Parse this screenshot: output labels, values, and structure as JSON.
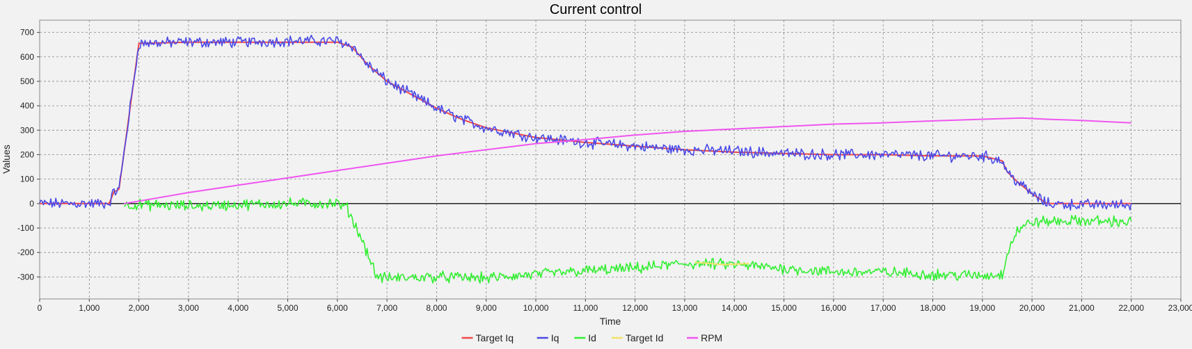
{
  "chart_data": {
    "type": "line",
    "title": "Current control",
    "xlabel": "Time",
    "ylabel": "Values",
    "xlim": [
      0,
      23000
    ],
    "ylim": [
      -390,
      750
    ],
    "x_ticks": [
      0,
      1000,
      2000,
      3000,
      4000,
      5000,
      6000,
      7000,
      8000,
      9000,
      10000,
      11000,
      12000,
      13000,
      14000,
      15000,
      16000,
      17000,
      18000,
      19000,
      20000,
      21000,
      22000,
      23000
    ],
    "x_tick_labels": [
      "0",
      "1,000",
      "2,000",
      "3,000",
      "4,000",
      "5,000",
      "6,000",
      "7,000",
      "8,000",
      "9,000",
      "10,000",
      "11,000",
      "12,000",
      "13,000",
      "14,000",
      "15,000",
      "16,000",
      "17,000",
      "18,000",
      "19,000",
      "20,000",
      "21,000",
      "22,000",
      "23,000"
    ],
    "y_ticks": [
      -300,
      -200,
      -100,
      0,
      100,
      200,
      300,
      400,
      500,
      600,
      700
    ],
    "y_tick_labels": [
      "-300",
      "-200",
      "-100",
      "0",
      "100",
      "200",
      "300",
      "400",
      "500",
      "600",
      "700"
    ],
    "grid": true,
    "legend_position": "bottom-center",
    "series": [
      {
        "name": "Target Iq",
        "color": "#f04848",
        "x": [
          0,
          1000,
          1400,
          1500,
          1550,
          1600,
          2000,
          3000,
          4000,
          5000,
          6000,
          6300,
          6600,
          7000,
          7500,
          8000,
          8500,
          9000,
          9500,
          10000,
          11000,
          12000,
          13000,
          14000,
          15000,
          16000,
          17000,
          18000,
          19000,
          19400,
          19500,
          19700,
          20000,
          20300,
          21000,
          22000
        ],
        "y": [
          0,
          0,
          0,
          50,
          52,
          60,
          655,
          660,
          660,
          660,
          660,
          640,
          570,
          500,
          445,
          390,
          345,
          310,
          290,
          270,
          250,
          235,
          220,
          210,
          205,
          200,
          200,
          195,
          195,
          175,
          130,
          90,
          40,
          0,
          0,
          0
        ]
      },
      {
        "name": "Iq",
        "color": "#4a4ae8",
        "noise": 18,
        "x": [
          0,
          1000,
          1400,
          1500,
          1550,
          1600,
          2000,
          3000,
          4000,
          5000,
          6000,
          6300,
          6600,
          7000,
          7500,
          8000,
          8500,
          9000,
          9500,
          10000,
          11000,
          12000,
          13000,
          14000,
          15000,
          16000,
          17000,
          18000,
          19000,
          19400,
          19500,
          19700,
          20000,
          20300,
          21000,
          22000
        ],
        "y": [
          0,
          0,
          0,
          50,
          52,
          60,
          655,
          660,
          660,
          665,
          665,
          645,
          570,
          500,
          445,
          390,
          345,
          310,
          290,
          270,
          250,
          235,
          220,
          215,
          205,
          200,
          200,
          195,
          195,
          175,
          130,
          90,
          40,
          0,
          -5,
          -5
        ]
      },
      {
        "name": "Id",
        "color": "#33ee33",
        "noise": 18,
        "x": [
          1700,
          2000,
          3000,
          4000,
          5000,
          6000,
          6200,
          6500,
          6800,
          7000,
          8000,
          9000,
          10000,
          11000,
          12000,
          13000,
          14000,
          15000,
          16000,
          17000,
          18000,
          19000,
          19400,
          19500,
          19700,
          20000,
          21000,
          22000
        ],
        "y": [
          -5,
          -5,
          -10,
          -5,
          0,
          0,
          -20,
          -150,
          -300,
          -305,
          -300,
          -305,
          -290,
          -275,
          -265,
          -245,
          -250,
          -265,
          -280,
          -280,
          -290,
          -295,
          -290,
          -200,
          -110,
          -75,
          -70,
          -75
        ]
      },
      {
        "name": "Target Id",
        "color": "#f2e26a",
        "x": [
          13200,
          13800,
          14300
        ],
        "y": [
          -240,
          -250,
          -245
        ]
      },
      {
        "name": "RPM",
        "color": "#f055f0",
        "x": [
          1700,
          2000,
          3000,
          4000,
          5000,
          6000,
          7000,
          8000,
          9000,
          10000,
          11000,
          12000,
          13000,
          14000,
          15000,
          16000,
          17000,
          18000,
          19000,
          19800,
          20300,
          21000,
          22000
        ],
        "y": [
          0,
          10,
          45,
          75,
          105,
          135,
          165,
          195,
          220,
          245,
          262,
          280,
          295,
          305,
          315,
          325,
          330,
          338,
          345,
          350,
          345,
          340,
          330
        ]
      }
    ]
  }
}
